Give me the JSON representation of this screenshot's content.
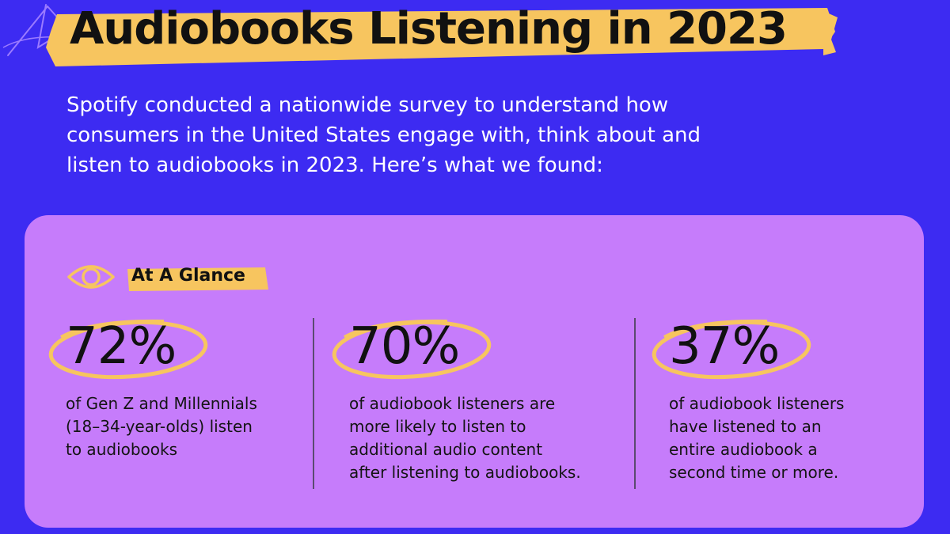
{
  "title": "Audiobooks Listening in 2023",
  "intro": "Spotify conducted a nationwide survey to understand how consumers in the United States engage with, think about and listen to audiobooks in 2023. Here’s what we found:",
  "glance": {
    "label": "At A Glance",
    "icon": "eye-icon"
  },
  "stats": [
    {
      "value": "72%",
      "description": "of Gen Z and Millennials\n(18–34-year-olds) listen\nto audiobooks"
    },
    {
      "value": "70%",
      "description": "of audiobook listeners are\nmore likely to listen to\nadditional audio content\n after listening to audiobooks."
    },
    {
      "value": "37%",
      "description": "of audiobook listeners\nhave listened to an\nentire audiobook a\nsecond time or more."
    }
  ],
  "colors": {
    "background": "#3D2BF2",
    "card": "#C67CFB",
    "highlight": "#F7C55F",
    "text_dark": "#111111",
    "text_light": "#FFFFFF"
  }
}
